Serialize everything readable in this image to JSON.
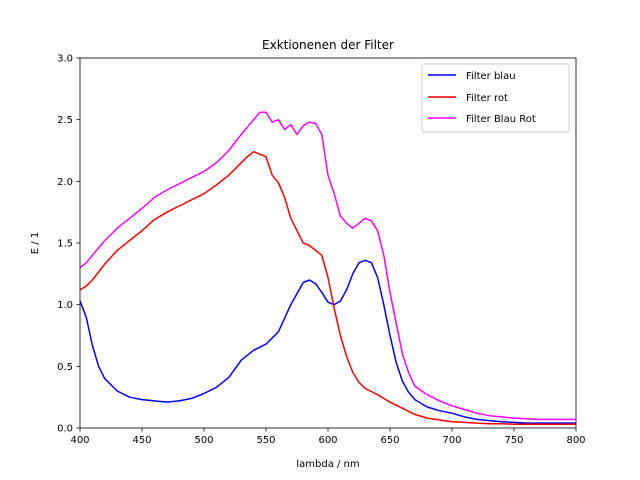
{
  "chart_data": {
    "type": "line",
    "title": "Exktionenen der Filter",
    "xlabel": "lambda / nm",
    "ylabel": "E / 1",
    "xlim": [
      400,
      800
    ],
    "ylim": [
      0.0,
      3.0
    ],
    "xticks": [
      400,
      450,
      500,
      550,
      600,
      650,
      700,
      750,
      800
    ],
    "xtick_labels": [
      "400",
      "450",
      "500",
      "550",
      "600",
      "650",
      "700",
      "750",
      "800"
    ],
    "yticks": [
      0.0,
      0.5,
      1.0,
      1.5,
      2.0,
      2.5,
      3.0
    ],
    "ytick_labels": [
      "0.0",
      "0.5",
      "1.0",
      "1.5",
      "2.0",
      "2.5",
      "3.0"
    ],
    "grid": false,
    "legend_position": "top-right",
    "series": [
      {
        "name": "Filter blau",
        "color": "#0000ff",
        "x": [
          400,
          405,
          410,
          415,
          420,
          430,
          440,
          450,
          460,
          470,
          480,
          490,
          500,
          510,
          520,
          530,
          540,
          550,
          560,
          570,
          580,
          585,
          590,
          595,
          600,
          605,
          610,
          615,
          620,
          625,
          630,
          635,
          640,
          645,
          650,
          655,
          660,
          665,
          670,
          680,
          690,
          700,
          710,
          720,
          730,
          740,
          750,
          760,
          770,
          780,
          790,
          800
        ],
        "y": [
          1.03,
          0.9,
          0.67,
          0.5,
          0.4,
          0.3,
          0.25,
          0.23,
          0.22,
          0.21,
          0.22,
          0.24,
          0.28,
          0.33,
          0.41,
          0.55,
          0.63,
          0.68,
          0.78,
          1.0,
          1.18,
          1.2,
          1.17,
          1.1,
          1.02,
          1.0,
          1.03,
          1.12,
          1.25,
          1.34,
          1.36,
          1.34,
          1.22,
          1.0,
          0.75,
          0.53,
          0.38,
          0.29,
          0.23,
          0.17,
          0.14,
          0.12,
          0.09,
          0.07,
          0.06,
          0.05,
          0.045,
          0.04,
          0.04,
          0.04,
          0.04,
          0.04
        ]
      },
      {
        "name": "Filter rot",
        "color": "#ff0000",
        "x": [
          400,
          405,
          410,
          420,
          430,
          440,
          450,
          460,
          470,
          480,
          490,
          500,
          510,
          520,
          530,
          535,
          540,
          545,
          550,
          555,
          560,
          565,
          570,
          575,
          580,
          585,
          590,
          595,
          600,
          605,
          610,
          615,
          620,
          625,
          630,
          640,
          650,
          660,
          670,
          680,
          690,
          700,
          710,
          720,
          730,
          740,
          750,
          760,
          770,
          780,
          790,
          800
        ],
        "y": [
          1.12,
          1.15,
          1.2,
          1.33,
          1.44,
          1.52,
          1.6,
          1.69,
          1.75,
          1.8,
          1.85,
          1.9,
          1.97,
          2.05,
          2.15,
          2.2,
          2.24,
          2.22,
          2.2,
          2.05,
          1.99,
          1.87,
          1.7,
          1.6,
          1.5,
          1.48,
          1.44,
          1.4,
          1.22,
          0.97,
          0.75,
          0.58,
          0.45,
          0.37,
          0.32,
          0.27,
          0.21,
          0.16,
          0.11,
          0.08,
          0.065,
          0.05,
          0.045,
          0.04,
          0.035,
          0.035,
          0.03,
          0.03,
          0.03,
          0.03,
          0.03,
          0.03
        ]
      },
      {
        "name": "Filter Blau Rot",
        "color": "#ff00ff",
        "x": [
          400,
          405,
          410,
          420,
          430,
          440,
          450,
          460,
          470,
          480,
          490,
          500,
          510,
          520,
          530,
          540,
          545,
          550,
          555,
          560,
          565,
          570,
          575,
          580,
          585,
          590,
          595,
          600,
          605,
          610,
          615,
          620,
          625,
          630,
          635,
          640,
          645,
          650,
          655,
          660,
          665,
          670,
          680,
          690,
          700,
          710,
          720,
          730,
          740,
          750,
          760,
          770,
          780,
          790,
          800
        ],
        "y": [
          1.3,
          1.34,
          1.4,
          1.52,
          1.62,
          1.7,
          1.78,
          1.87,
          1.93,
          1.98,
          2.03,
          2.08,
          2.15,
          2.25,
          2.38,
          2.5,
          2.56,
          2.56,
          2.48,
          2.5,
          2.42,
          2.46,
          2.38,
          2.45,
          2.48,
          2.47,
          2.38,
          2.05,
          1.9,
          1.72,
          1.66,
          1.62,
          1.66,
          1.7,
          1.68,
          1.6,
          1.4,
          1.1,
          0.85,
          0.6,
          0.45,
          0.34,
          0.27,
          0.22,
          0.18,
          0.15,
          0.12,
          0.1,
          0.09,
          0.08,
          0.075,
          0.07,
          0.07,
          0.07,
          0.07
        ]
      }
    ]
  }
}
